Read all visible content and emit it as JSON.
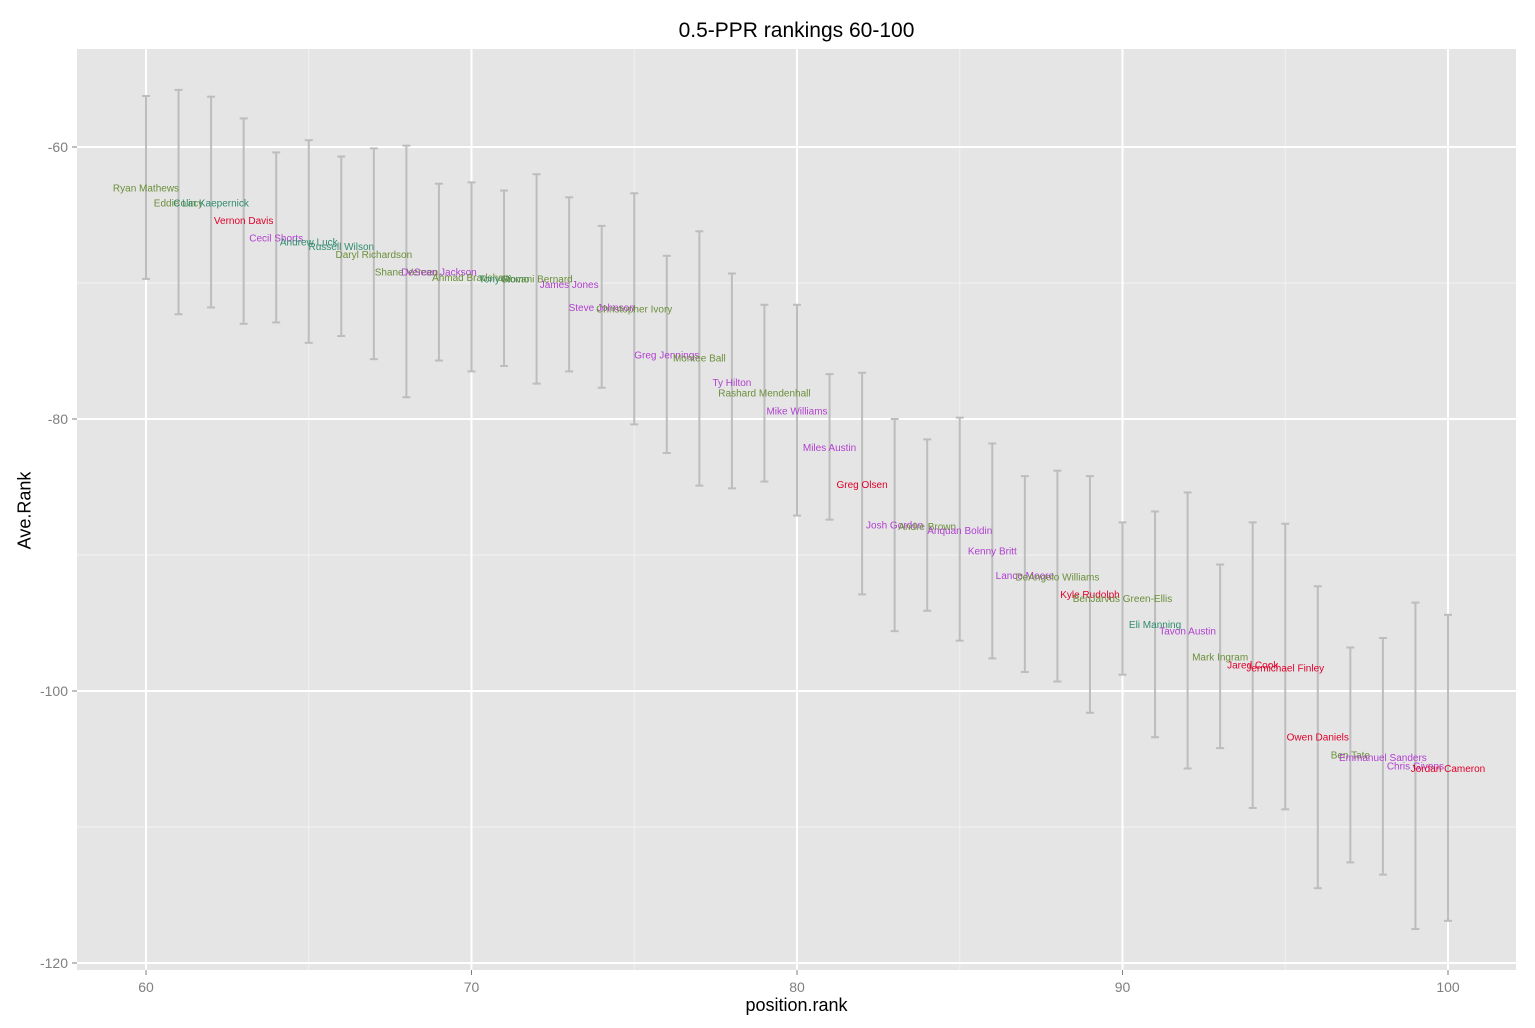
{
  "chart_data": {
    "type": "scatter",
    "subtype": "errorbar-with-text-labels",
    "title": "0.5-PPR rankings 60-100",
    "xlabel": "position.rank",
    "ylabel": "Ave.Rank",
    "xlim": [
      58,
      102.2
    ],
    "ylim": [
      -120.5,
      -52.8
    ],
    "x_ticks": [
      60,
      70,
      80,
      90,
      100
    ],
    "x_tick_labels": [
      "60",
      "70",
      "80",
      "90",
      "100"
    ],
    "y_ticks": [
      -60,
      -80,
      -100,
      -120
    ],
    "y_tick_labels": [
      "-60",
      "-80",
      "-100",
      "-120"
    ],
    "grid": true,
    "legend": "none",
    "position_colors": {
      "QB": "#2e8b6e",
      "RB": "#6b8f3a",
      "WR": "#b040d0",
      "TE": "#e0002a"
    },
    "points": [
      {
        "x": 60,
        "y": -63.0,
        "ymin": -69.7,
        "ymax": -56.25,
        "label": "Ryan Mathews",
        "pos": "RB"
      },
      {
        "x": 61,
        "y": -64.1,
        "ymin": -72.3,
        "ymax": -55.8,
        "label": "Eddie Lacy",
        "pos": "RB"
      },
      {
        "x": 62,
        "y": -64.1,
        "ymin": -71.8,
        "ymax": -56.3,
        "label": "Colin Kaepernick",
        "pos": "QB"
      },
      {
        "x": 63,
        "y": -65.4,
        "ymin": -73.0,
        "ymax": -57.9,
        "label": "Vernon Davis",
        "pos": "TE"
      },
      {
        "x": 64,
        "y": -66.7,
        "ymin": -72.9,
        "ymax": -60.4,
        "label": "Cecil Shorts",
        "pos": "WR"
      },
      {
        "x": 65,
        "y": -67.0,
        "ymin": -74.4,
        "ymax": -59.5,
        "label": "Andrew Luck",
        "pos": "QB"
      },
      {
        "x": 66,
        "y": -67.3,
        "ymin": -73.9,
        "ymax": -60.7,
        "label": "Russell Wilson",
        "pos": "QB"
      },
      {
        "x": 67,
        "y": -67.9,
        "ymin": -75.6,
        "ymax": -60.1,
        "label": "Daryl Richardson",
        "pos": "RB"
      },
      {
        "x": 68,
        "y": -69.2,
        "ymin": -78.4,
        "ymax": -59.9,
        "label": "Shane Vereen",
        "pos": "RB"
      },
      {
        "x": 69,
        "y": -69.2,
        "ymin": -75.7,
        "ymax": -62.7,
        "label": "DeSean Jackson",
        "pos": "WR"
      },
      {
        "x": 70,
        "y": -69.6,
        "ymin": -76.5,
        "ymax": -62.6,
        "label": "Ahmad Bradshaw",
        "pos": "RB"
      },
      {
        "x": 71,
        "y": -69.7,
        "ymin": -76.1,
        "ymax": -63.2,
        "label": "Tony Romo",
        "pos": "QB"
      },
      {
        "x": 72,
        "y": -69.7,
        "ymin": -77.4,
        "ymax": -62.0,
        "label": "Giovani Bernard",
        "pos": "RB"
      },
      {
        "x": 73,
        "y": -70.1,
        "ymin": -76.5,
        "ymax": -63.7,
        "label": "James Jones",
        "pos": "WR"
      },
      {
        "x": 74,
        "y": -71.8,
        "ymin": -77.7,
        "ymax": -65.8,
        "label": "Steve Johnson",
        "pos": "WR"
      },
      {
        "x": 75,
        "y": -71.9,
        "ymin": -80.4,
        "ymax": -63.4,
        "label": "Christopher Ivory",
        "pos": "RB"
      },
      {
        "x": 76,
        "y": -75.3,
        "ymin": -82.5,
        "ymax": -68.0,
        "label": "Greg Jennings",
        "pos": "WR"
      },
      {
        "x": 77,
        "y": -75.5,
        "ymin": -84.9,
        "ymax": -66.2,
        "label": "Montee Ball",
        "pos": "RB"
      },
      {
        "x": 78,
        "y": -77.3,
        "ymin": -85.1,
        "ymax": -69.3,
        "label": "Ty Hilton",
        "pos": "WR"
      },
      {
        "x": 79,
        "y": -78.1,
        "ymin": -84.6,
        "ymax": -71.6,
        "label": "Rashard Mendenhall",
        "pos": "RB"
      },
      {
        "x": 80,
        "y": -79.4,
        "ymin": -87.1,
        "ymax": -71.6,
        "label": "Mike Williams",
        "pos": "WR"
      },
      {
        "x": 81,
        "y": -82.1,
        "ymin": -87.4,
        "ymax": -76.7,
        "label": "Miles Austin",
        "pos": "WR"
      },
      {
        "x": 82,
        "y": -84.8,
        "ymin": -92.9,
        "ymax": -76.6,
        "label": "Greg Olsen",
        "pos": "TE"
      },
      {
        "x": 83,
        "y": -87.8,
        "ymin": -95.6,
        "ymax": -80.0,
        "label": "Josh Gordon",
        "pos": "WR"
      },
      {
        "x": 84,
        "y": -87.9,
        "ymin": -94.1,
        "ymax": -81.5,
        "label": "Andre Brown",
        "pos": "RB"
      },
      {
        "x": 85,
        "y": -88.2,
        "ymin": -96.3,
        "ymax": -79.9,
        "label": "Anquan Boldin",
        "pos": "WR"
      },
      {
        "x": 86,
        "y": -89.7,
        "ymin": -97.6,
        "ymax": -81.8,
        "label": "Kenny Britt",
        "pos": "WR"
      },
      {
        "x": 87,
        "y": -91.5,
        "ymin": -98.6,
        "ymax": -84.2,
        "label": "Lance Moore",
        "pos": "WR"
      },
      {
        "x": 88,
        "y": -91.6,
        "ymin": -99.3,
        "ymax": -83.8,
        "label": "DeAngelo Williams",
        "pos": "RB"
      },
      {
        "x": 89,
        "y": -92.9,
        "ymin": -101.6,
        "ymax": -84.2,
        "label": "Kyle Rudolph",
        "pos": "TE"
      },
      {
        "x": 90,
        "y": -93.2,
        "ymin": -98.8,
        "ymax": -87.6,
        "label": "BenJarvus Green-Ellis",
        "pos": "RB"
      },
      {
        "x": 91,
        "y": -95.1,
        "ymin": -103.4,
        "ymax": -86.8,
        "label": "Eli Manning",
        "pos": "QB"
      },
      {
        "x": 92,
        "y": -95.6,
        "ymin": -105.7,
        "ymax": -85.4,
        "label": "Tavon Austin",
        "pos": "WR"
      },
      {
        "x": 93,
        "y": -97.5,
        "ymin": -104.2,
        "ymax": -90.7,
        "label": "Mark Ingram",
        "pos": "RB"
      },
      {
        "x": 94,
        "y": -98.1,
        "ymin": -108.6,
        "ymax": -87.6,
        "label": "Jared Cook",
        "pos": "TE"
      },
      {
        "x": 95,
        "y": -98.3,
        "ymin": -108.7,
        "ymax": -87.7,
        "label": "Jermichael Finley",
        "pos": "TE"
      },
      {
        "x": 96,
        "y": -103.4,
        "ymin": -114.5,
        "ymax": -92.3,
        "label": "Owen Daniels",
        "pos": "TE"
      },
      {
        "x": 97,
        "y": -104.7,
        "ymin": -112.6,
        "ymax": -96.8,
        "label": "Ben Tate",
        "pos": "RB"
      },
      {
        "x": 98,
        "y": -104.9,
        "ymin": -113.5,
        "ymax": -96.1,
        "label": "Emmanuel Sanders",
        "pos": "WR"
      },
      {
        "x": 99,
        "y": -105.5,
        "ymin": -117.5,
        "ymax": -93.5,
        "label": "Chris Givens",
        "pos": "WR"
      },
      {
        "x": 100,
        "y": -105.7,
        "ymin": -116.9,
        "ymax": -94.4,
        "label": "Jordan Cameron",
        "pos": "TE"
      }
    ]
  }
}
